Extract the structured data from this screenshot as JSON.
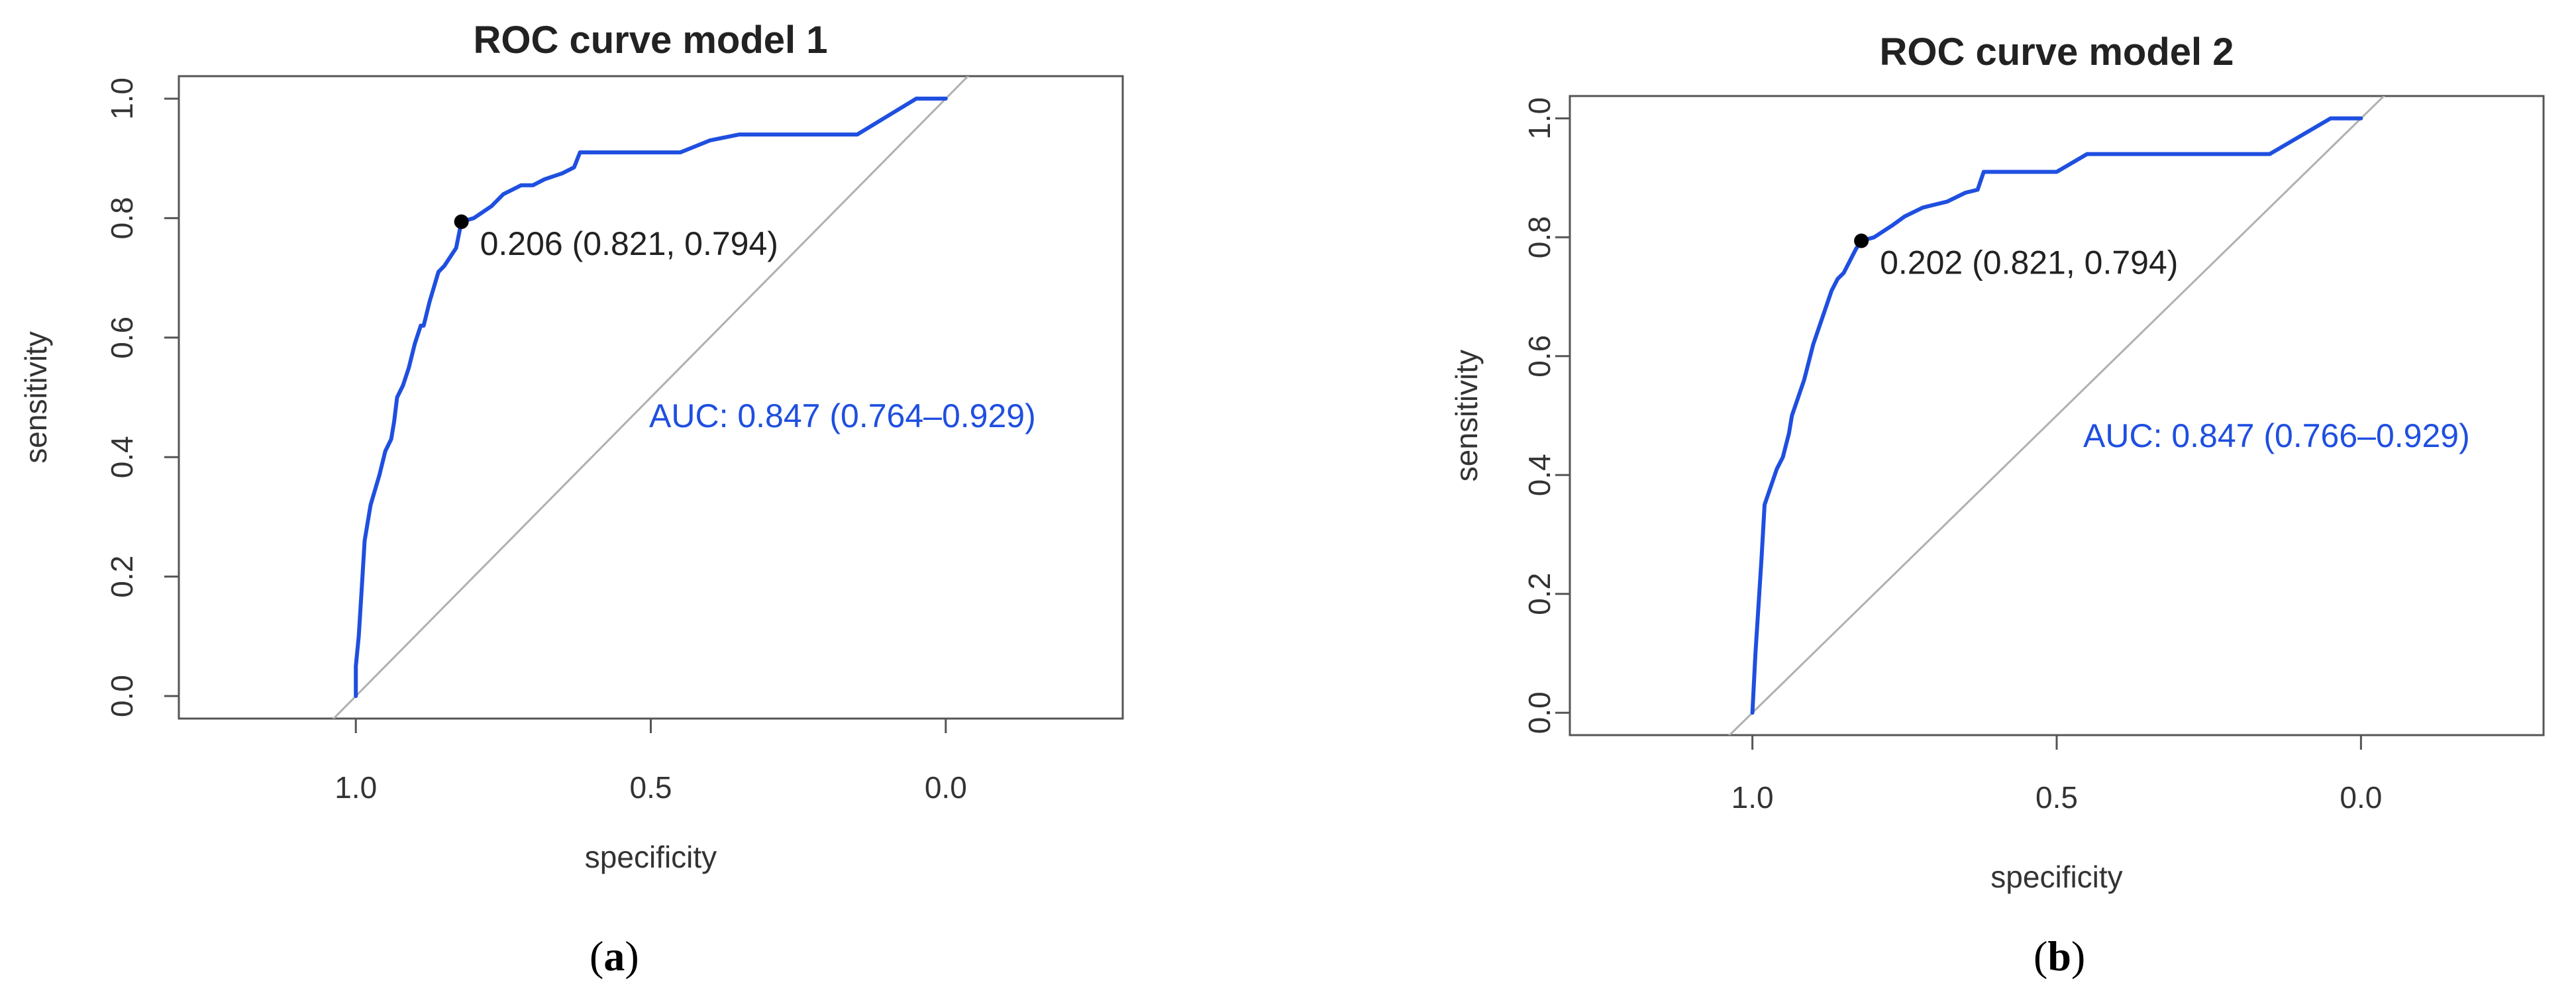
{
  "chart_data": [
    {
      "type": "line",
      "panel_label": "a",
      "title": "ROC curve model 1",
      "xlabel": "specificity",
      "ylabel": "sensitivity",
      "xlim": [
        1.3,
        -0.3
      ],
      "ylim": [
        0.0,
        1.0
      ],
      "x_reversed": true,
      "x_ticks": [
        "1.0",
        "0.5",
        "0.0"
      ],
      "y_ticks": [
        "0.0",
        "0.2",
        "0.4",
        "0.6",
        "0.8",
        "1.0"
      ],
      "grid": false,
      "series": [
        {
          "color": "#1f4fe0",
          "x": [
            1.0,
            1.0,
            0.995,
            0.99,
            0.985,
            0.975,
            0.96,
            0.95,
            0.94,
            0.935,
            0.93,
            0.92,
            0.91,
            0.9,
            0.89,
            0.885,
            0.875,
            0.86,
            0.85,
            0.83,
            0.821,
            0.8,
            0.77,
            0.75,
            0.72,
            0.7,
            0.68,
            0.65,
            0.63,
            0.62,
            0.6,
            0.55,
            0.5,
            0.45,
            0.4,
            0.35,
            0.3,
            0.2,
            0.15,
            0.1,
            0.05,
            0.0
          ],
          "y": [
            0.0,
            0.05,
            0.1,
            0.18,
            0.26,
            0.32,
            0.37,
            0.41,
            0.43,
            0.46,
            0.5,
            0.52,
            0.55,
            0.59,
            0.62,
            0.62,
            0.66,
            0.71,
            0.72,
            0.75,
            0.794,
            0.8,
            0.82,
            0.84,
            0.855,
            0.855,
            0.865,
            0.875,
            0.885,
            0.91,
            0.91,
            0.91,
            0.91,
            0.91,
            0.93,
            0.94,
            0.94,
            0.94,
            0.94,
            0.97,
            1.0,
            1.0
          ]
        }
      ],
      "reference_line": "diagonal",
      "point": {
        "x": 0.821,
        "y": 0.794,
        "label": "0.206 (0.821, 0.794)"
      },
      "auc_label": "AUC: 0.847 (0.764–0.929)"
    },
    {
      "type": "line",
      "panel_label": "b",
      "title": "ROC curve model 2",
      "xlabel": "specificity",
      "ylabel": "sensitivity",
      "xlim": [
        1.3,
        -0.3
      ],
      "ylim": [
        0.0,
        1.0
      ],
      "x_reversed": true,
      "x_ticks": [
        "1.0",
        "0.5",
        "0.0"
      ],
      "y_ticks": [
        "0.0",
        "0.2",
        "0.4",
        "0.6",
        "0.8",
        "1.0"
      ],
      "grid": false,
      "series": [
        {
          "color": "#1f4fe0",
          "x": [
            1.0,
            0.995,
            0.99,
            0.985,
            0.98,
            0.97,
            0.96,
            0.95,
            0.94,
            0.935,
            0.925,
            0.915,
            0.905,
            0.9,
            0.89,
            0.88,
            0.87,
            0.86,
            0.85,
            0.84,
            0.83,
            0.821,
            0.8,
            0.77,
            0.75,
            0.72,
            0.68,
            0.65,
            0.63,
            0.62,
            0.6,
            0.55,
            0.5,
            0.45,
            0.4,
            0.35,
            0.3,
            0.25,
            0.2,
            0.15,
            0.1,
            0.05,
            0.0
          ],
          "y": [
            0.0,
            0.1,
            0.18,
            0.26,
            0.35,
            0.38,
            0.41,
            0.43,
            0.47,
            0.5,
            0.53,
            0.56,
            0.6,
            0.62,
            0.65,
            0.68,
            0.71,
            0.73,
            0.74,
            0.76,
            0.78,
            0.794,
            0.8,
            0.82,
            0.835,
            0.85,
            0.86,
            0.875,
            0.88,
            0.91,
            0.91,
            0.91,
            0.91,
            0.94,
            0.94,
            0.94,
            0.94,
            0.94,
            0.94,
            0.94,
            0.97,
            1.0,
            1.0
          ]
        }
      ],
      "reference_line": "diagonal",
      "point": {
        "x": 0.821,
        "y": 0.794,
        "label": "0.202 (0.821, 0.794)"
      },
      "auc_label": "AUC: 0.847 (0.766–0.929)"
    }
  ],
  "colors": {
    "curve": "#1f4fe0",
    "auc_text": "#1f4fe0",
    "diagonal": "#b0b0b0",
    "frame": "#555555"
  }
}
